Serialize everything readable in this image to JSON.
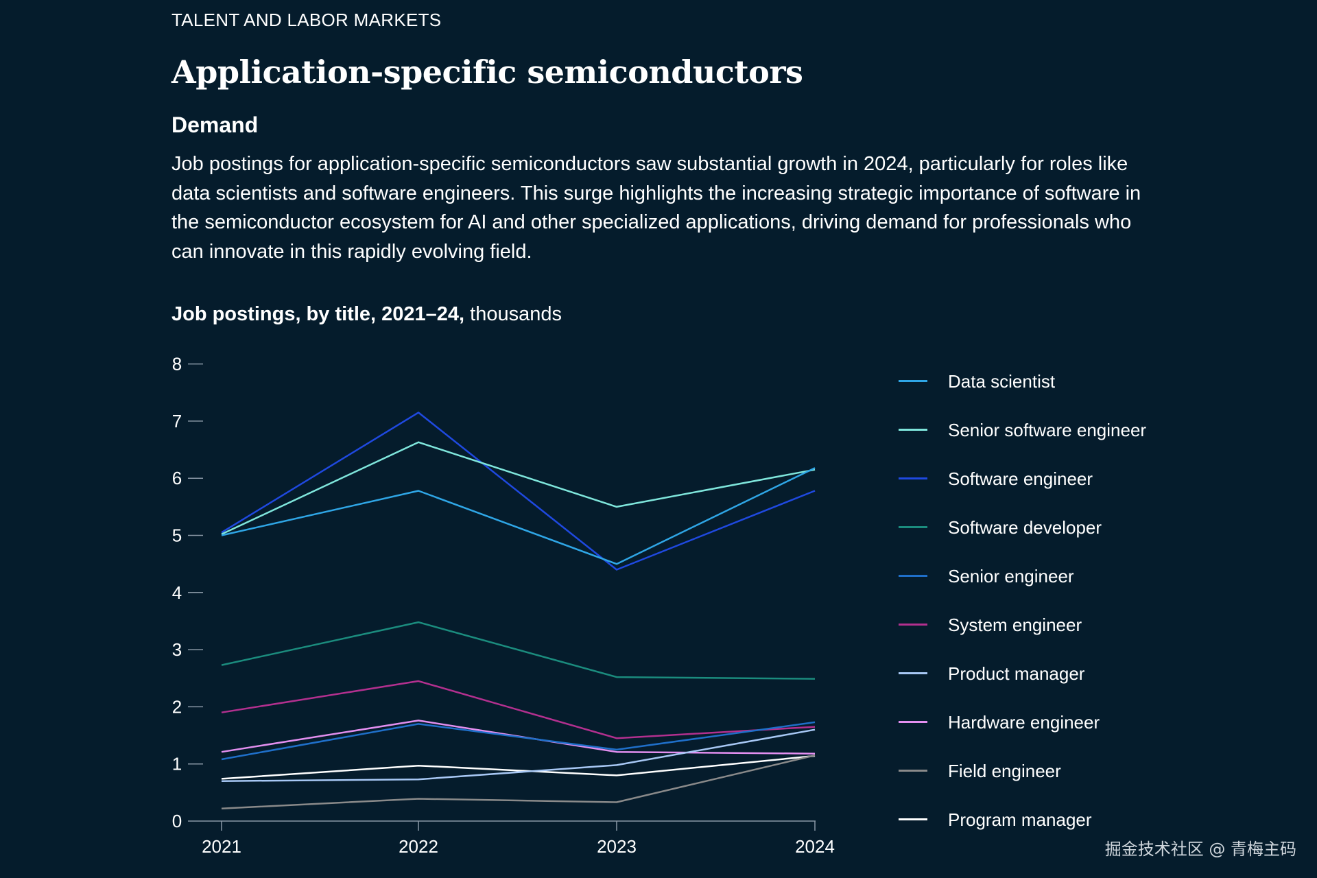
{
  "header": {
    "eyebrow": "TALENT AND LABOR MARKETS",
    "title": "Application-specific semiconductors",
    "section": "Demand",
    "description": "Job postings for application-specific semiconductors saw substantial growth in 2024, particularly for roles like data scientists and software engineers. This surge highlights the increasing strategic importance of software in the semiconductor ecosystem for AI and other specialized applications, driving demand for professionals who can innovate in this rapidly evolving field."
  },
  "chart_heading": {
    "bold": "Job postings, by title, 2021–24,",
    "unit": " thousands"
  },
  "watermark": "掘金技术社区 @ 青梅主码",
  "colors": {
    "background": "#051c2c",
    "axis": "#8a98a6"
  },
  "chart_data": {
    "type": "line",
    "x": [
      "2021",
      "2022",
      "2023",
      "2024"
    ],
    "ylim": [
      0,
      8
    ],
    "yticks": [
      0,
      1,
      2,
      3,
      4,
      5,
      6,
      7,
      8
    ],
    "legend_position": "right",
    "grid": false,
    "series": [
      {
        "name": "Data scientist",
        "color": "#2fa6e6",
        "values": [
          5.0,
          5.78,
          4.5,
          6.18
        ]
      },
      {
        "name": "Senior software engineer",
        "color": "#7fe6dc",
        "values": [
          5.02,
          6.63,
          5.5,
          6.15
        ]
      },
      {
        "name": "Software engineer",
        "color": "#1f49e0",
        "values": [
          5.05,
          7.15,
          4.4,
          5.78
        ]
      },
      {
        "name": "Software developer",
        "color": "#1b8c7e",
        "values": [
          2.73,
          3.48,
          2.52,
          2.49
        ]
      },
      {
        "name": "Senior engineer",
        "color": "#1f6fc9",
        "values": [
          1.08,
          1.7,
          1.25,
          1.73
        ]
      },
      {
        "name": "System engineer",
        "color": "#b3308f",
        "values": [
          1.9,
          2.45,
          1.45,
          1.65
        ]
      },
      {
        "name": "Product manager",
        "color": "#a8c8f5",
        "values": [
          0.7,
          0.73,
          0.98,
          1.6
        ]
      },
      {
        "name": "Hardware engineer",
        "color": "#e38ff0",
        "values": [
          1.21,
          1.76,
          1.21,
          1.18
        ]
      },
      {
        "name": "Field engineer",
        "color": "#8a8a8a",
        "values": [
          0.22,
          0.39,
          0.33,
          1.15
        ]
      },
      {
        "name": "Program manager",
        "color": "#ffffff",
        "values": [
          0.74,
          0.97,
          0.8,
          1.14
        ]
      }
    ]
  }
}
